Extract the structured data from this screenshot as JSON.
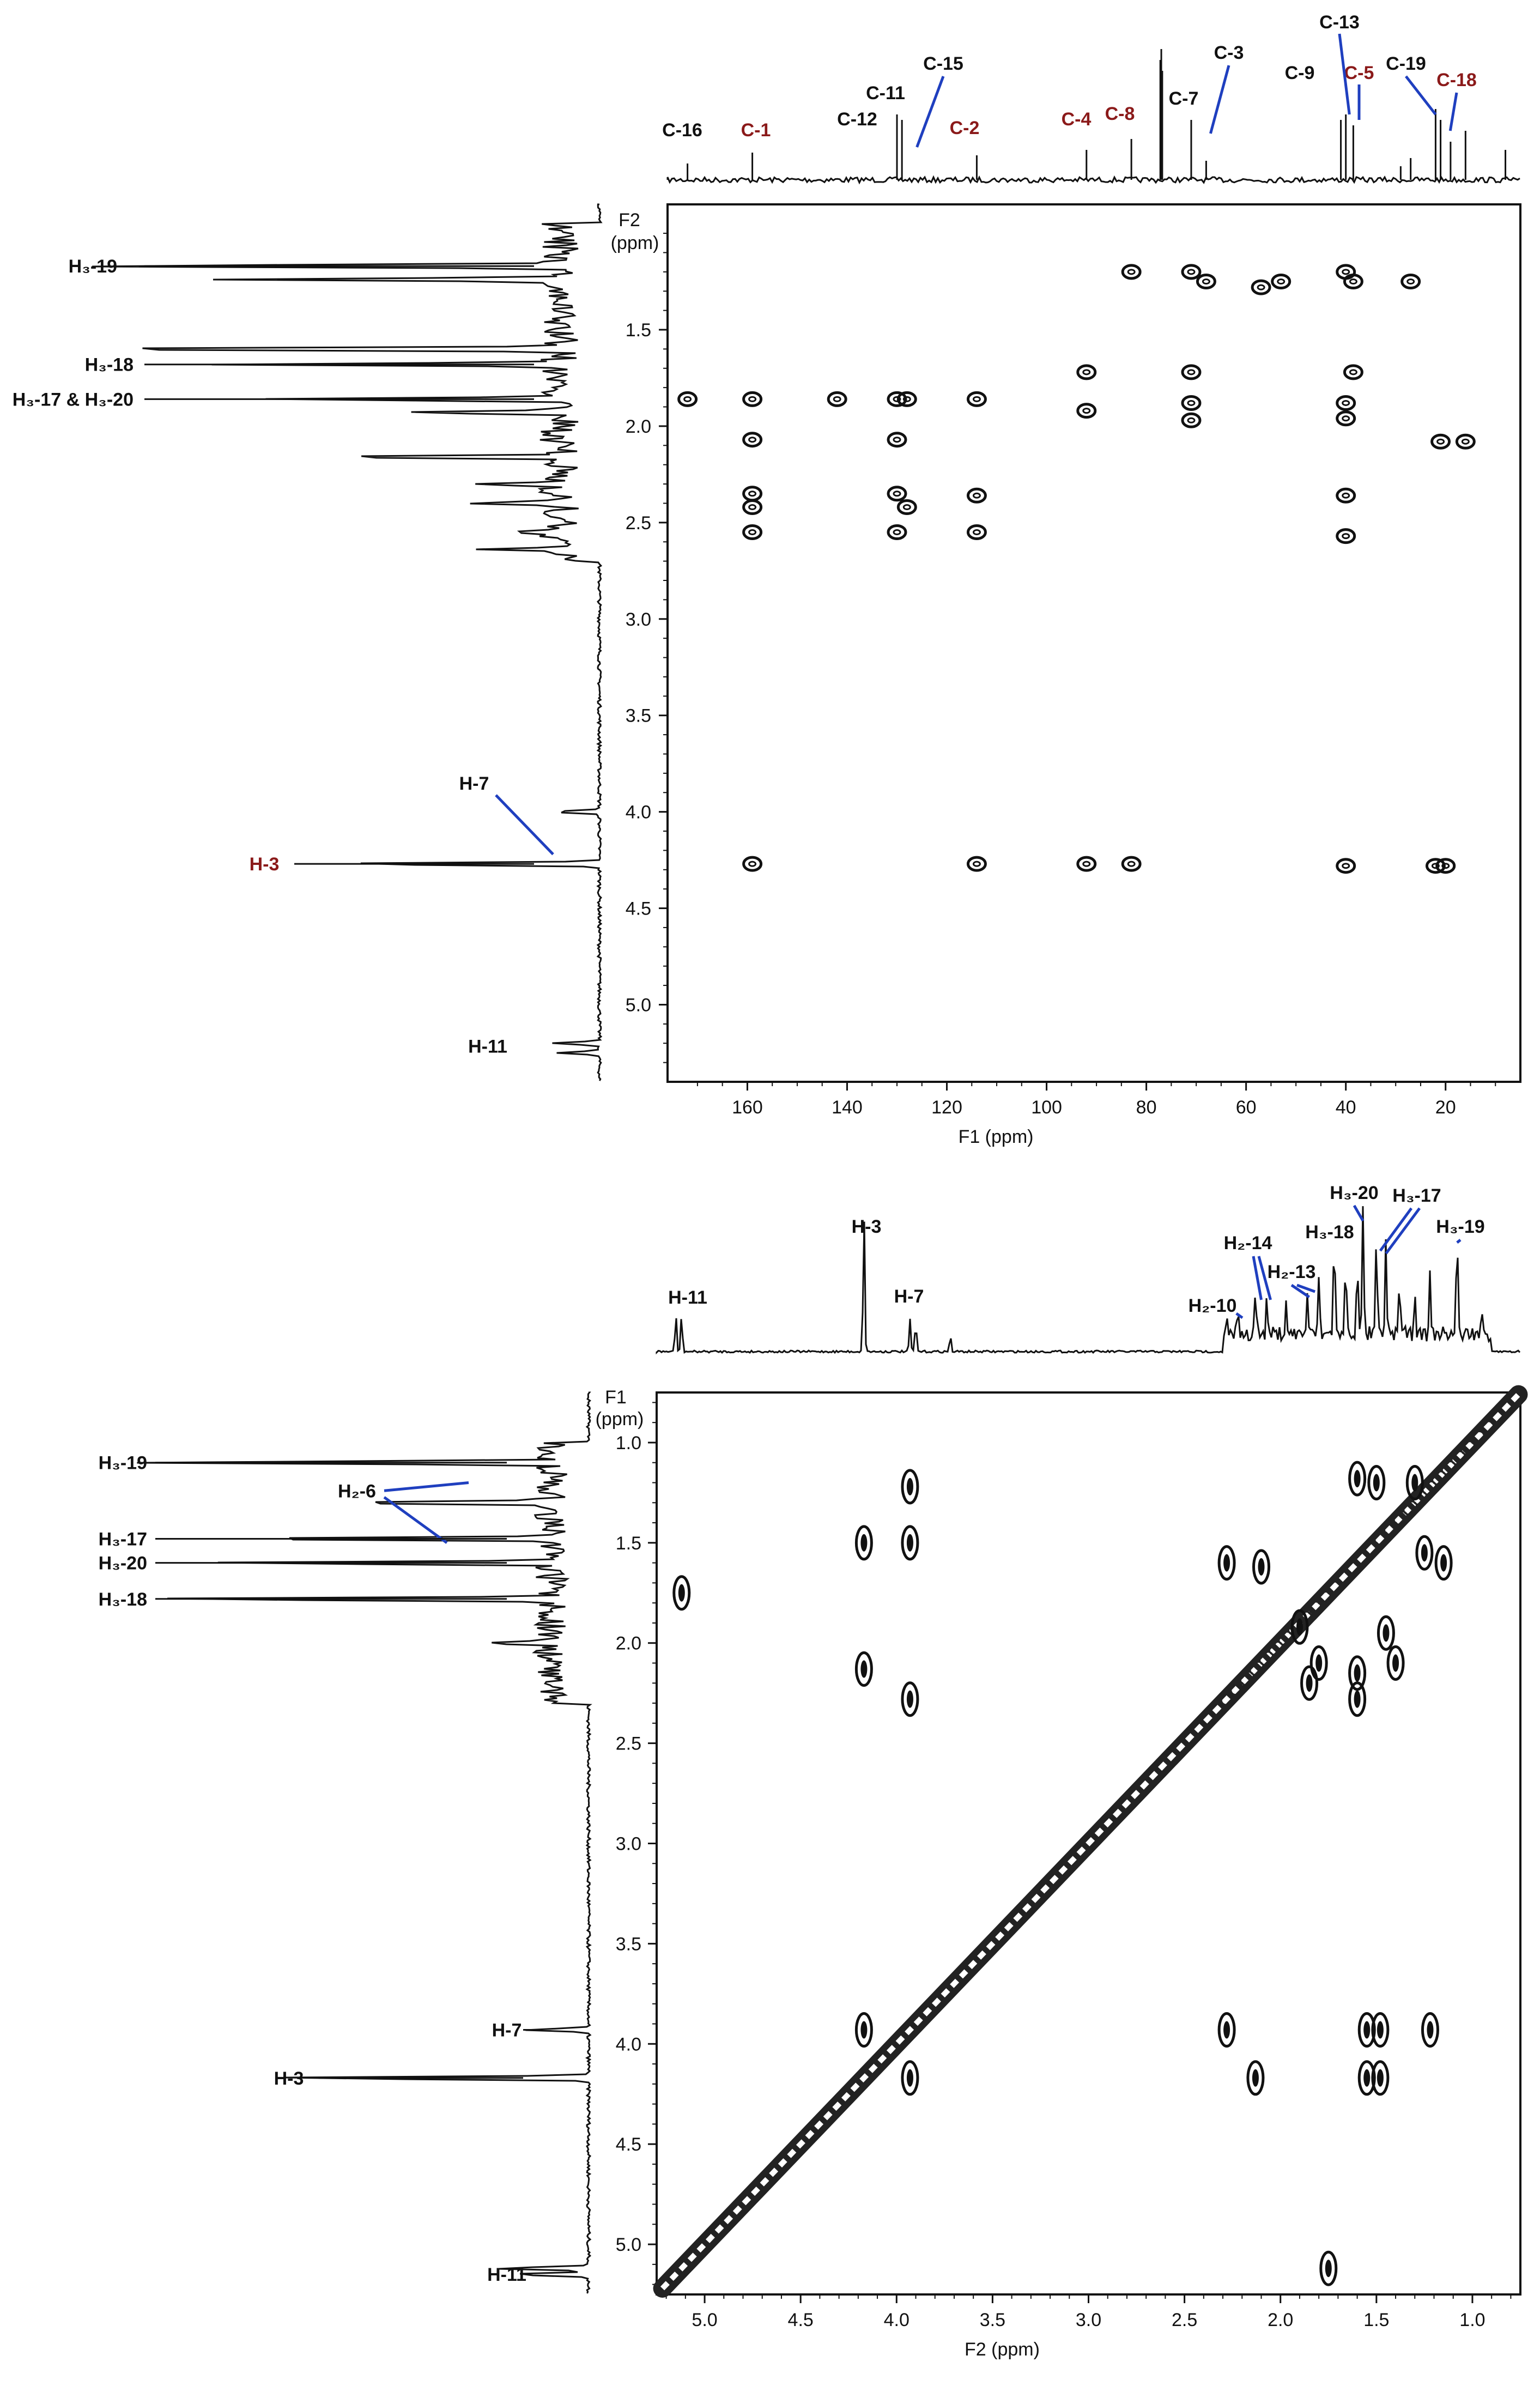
{
  "colors": {
    "label_black": "#111111",
    "label_red": "#8b1a1a",
    "leader_blue": "#1f3fbf",
    "trace": "#111111"
  },
  "chart_data": [
    {
      "type": "scatter",
      "experiment": "HMBC",
      "f1_label": "F1 (ppm)",
      "f2_label": "F2 (ppm)",
      "f1_axis": "horizontal (13C)",
      "f1_lim": [
        176,
        5
      ],
      "f1_ticks": [
        160,
        140,
        120,
        100,
        80,
        60,
        40,
        20
      ],
      "f2_axis": "vertical (1H)",
      "f2_lim": [
        0.85,
        5.4
      ],
      "f2_ticks": [
        "1.5",
        "2.0",
        "2.5",
        "3.0",
        "3.5",
        "4.0",
        "4.5",
        "5.0"
      ],
      "top_projection_labels": [
        {
          "text": "C-16",
          "ppm": 172,
          "color": "black"
        },
        {
          "text": "C-1",
          "ppm": 159,
          "color": "red"
        },
        {
          "text": "C-12",
          "ppm": 130,
          "color": "black"
        },
        {
          "text": "C-11",
          "ppm": 129,
          "color": "black"
        },
        {
          "text": "C-15",
          "ppm": 126,
          "color": "black"
        },
        {
          "text": "C-2",
          "ppm": 114,
          "color": "red"
        },
        {
          "text": "C-4",
          "ppm": 92,
          "color": "red"
        },
        {
          "text": "C-8",
          "ppm": 83,
          "color": "red"
        },
        {
          "text": "C-7",
          "ppm": 71,
          "color": "black"
        },
        {
          "text": "C-3",
          "ppm": 68,
          "color": "black"
        },
        {
          "text": "C-9",
          "ppm": 41,
          "color": "black"
        },
        {
          "text": "C-13",
          "ppm": 39.5,
          "color": "black"
        },
        {
          "text": "C-5",
          "ppm": 38,
          "color": "red"
        },
        {
          "text": "C-19",
          "ppm": 22,
          "color": "black"
        },
        {
          "text": "C-18",
          "ppm": 20,
          "color": "red"
        }
      ],
      "left_projection_labels": [
        {
          "text": "H₃-19",
          "ppm": 1.17,
          "color": "black"
        },
        {
          "text": "H₃-18",
          "ppm": 1.68,
          "color": "black"
        },
        {
          "text": "H₃-17 & H₃-20",
          "ppm": 1.86,
          "color": "black"
        },
        {
          "text": "H-7",
          "ppm": 4.0,
          "color": "black"
        },
        {
          "text": "H-3",
          "ppm": 4.27,
          "color": "red"
        },
        {
          "text": "H-11",
          "ppm": 5.22,
          "color": "black"
        }
      ],
      "cross_peaks": [
        {
          "f1": 83,
          "f2": 1.2
        },
        {
          "f1": 71,
          "f2": 1.2
        },
        {
          "f1": 68,
          "f2": 1.25
        },
        {
          "f1": 57,
          "f2": 1.28
        },
        {
          "f1": 53,
          "f2": 1.25
        },
        {
          "f1": 40,
          "f2": 1.2
        },
        {
          "f1": 38.5,
          "f2": 1.25
        },
        {
          "f1": 27,
          "f2": 1.25
        },
        {
          "f1": 92,
          "f2": 1.72
        },
        {
          "f1": 71,
          "f2": 1.72
        },
        {
          "f1": 38.5,
          "f2": 1.72
        },
        {
          "f1": 172,
          "f2": 1.86
        },
        {
          "f1": 159,
          "f2": 1.86
        },
        {
          "f1": 142,
          "f2": 1.86
        },
        {
          "f1": 130,
          "f2": 1.86
        },
        {
          "f1": 128,
          "f2": 1.86
        },
        {
          "f1": 114,
          "f2": 1.86
        },
        {
          "f1": 92,
          "f2": 1.92
        },
        {
          "f1": 71,
          "f2": 1.88
        },
        {
          "f1": 71,
          "f2": 1.97
        },
        {
          "f1": 40,
          "f2": 1.88
        },
        {
          "f1": 40,
          "f2": 1.96
        },
        {
          "f1": 159,
          "f2": 2.07
        },
        {
          "f1": 130,
          "f2": 2.07
        },
        {
          "f1": 21,
          "f2": 2.08
        },
        {
          "f1": 16,
          "f2": 2.08
        },
        {
          "f1": 159,
          "f2": 2.35
        },
        {
          "f1": 159,
          "f2": 2.42
        },
        {
          "f1": 130,
          "f2": 2.35
        },
        {
          "f1": 128,
          "f2": 2.42
        },
        {
          "f1": 114,
          "f2": 2.36
        },
        {
          "f1": 40,
          "f2": 2.36
        },
        {
          "f1": 159,
          "f2": 2.55
        },
        {
          "f1": 130,
          "f2": 2.55
        },
        {
          "f1": 114,
          "f2": 2.55
        },
        {
          "f1": 40,
          "f2": 2.57
        },
        {
          "f1": 159,
          "f2": 4.27
        },
        {
          "f1": 114,
          "f2": 4.27
        },
        {
          "f1": 92,
          "f2": 4.27
        },
        {
          "f1": 83,
          "f2": 4.27
        },
        {
          "f1": 40,
          "f2": 4.28
        },
        {
          "f1": 22,
          "f2": 4.28
        },
        {
          "f1": 20,
          "f2": 4.28
        }
      ]
    },
    {
      "type": "scatter",
      "experiment": "COSY",
      "f1_label": "F1 (ppm)",
      "f2_label": "F2 (ppm)",
      "f2_axis": "horizontal (1H)",
      "f2_lim": [
        5.25,
        0.75
      ],
      "f2_ticks": [
        "5.0",
        "4.5",
        "4.0",
        "3.5",
        "3.0",
        "2.5",
        "2.0",
        "1.5",
        "1.0"
      ],
      "f1_axis": "vertical (1H)",
      "f1_lim": [
        0.75,
        5.25
      ],
      "f1_ticks": [
        "1.0",
        "1.5",
        "2.0",
        "2.5",
        "3.0",
        "3.5",
        "4.0",
        "4.5",
        "5.0"
      ],
      "top_projection_labels": [
        {
          "text": "H-11",
          "ppm": 5.15,
          "color": "black"
        },
        {
          "text": "H-3",
          "ppm": 4.17,
          "color": "black"
        },
        {
          "text": "H-7",
          "ppm": 3.93,
          "color": "black"
        },
        {
          "text": "H₂-10",
          "ppm": 2.23,
          "color": "black"
        },
        {
          "text": "H₂-14",
          "ppm": 2.1,
          "color": "black"
        },
        {
          "text": "H₂-13",
          "ppm": 1.85,
          "color": "black"
        },
        {
          "text": "H₃-18",
          "ppm": 1.72,
          "color": "black"
        },
        {
          "text": "H₃-20",
          "ppm": 1.57,
          "color": "black"
        },
        {
          "text": "H₃-17",
          "ppm": 1.48,
          "color": "black"
        },
        {
          "text": "H₃-19",
          "ppm": 1.08,
          "color": "black"
        }
      ],
      "left_projection_labels": [
        {
          "text": "H₃-19",
          "ppm": 1.1,
          "color": "black"
        },
        {
          "text": "H₂-6",
          "ppm": 1.3,
          "color": "black"
        },
        {
          "text": "H₃-17",
          "ppm": 1.48,
          "color": "black"
        },
        {
          "text": "H₃-20",
          "ppm": 1.6,
          "color": "black"
        },
        {
          "text": "H₃-18",
          "ppm": 1.78,
          "color": "black"
        },
        {
          "text": "H-7",
          "ppm": 3.93,
          "color": "black"
        },
        {
          "text": "H-3",
          "ppm": 4.17,
          "color": "black"
        },
        {
          "text": "H-11",
          "ppm": 5.15,
          "color": "black"
        }
      ],
      "cross_peaks": [
        {
          "f2": 5.12,
          "f1": 1.75
        },
        {
          "f2": 4.17,
          "f1": 1.5
        },
        {
          "f2": 4.17,
          "f1": 2.13
        },
        {
          "f2": 3.93,
          "f1": 1.22
        },
        {
          "f2": 3.93,
          "f1": 1.5
        },
        {
          "f2": 3.93,
          "f1": 2.28
        },
        {
          "f2": 2.28,
          "f1": 3.93
        },
        {
          "f2": 2.13,
          "f1": 4.17
        },
        {
          "f2": 1.55,
          "f1": 3.93
        },
        {
          "f2": 1.48,
          "f1": 3.93
        },
        {
          "f2": 1.55,
          "f1": 4.17
        },
        {
          "f2": 1.48,
          "f1": 4.17
        },
        {
          "f2": 1.22,
          "f1": 3.93
        },
        {
          "f2": 1.75,
          "f1": 5.12
        },
        {
          "f2": 4.17,
          "f1": 3.93
        },
        {
          "f2": 3.93,
          "f1": 4.17
        },
        {
          "f2": 2.28,
          "f1": 1.6
        },
        {
          "f2": 2.1,
          "f1": 1.62
        },
        {
          "f2": 1.9,
          "f1": 1.92
        },
        {
          "f2": 1.85,
          "f1": 2.2
        },
        {
          "f2": 1.8,
          "f1": 2.1
        },
        {
          "f2": 1.6,
          "f1": 2.28
        },
        {
          "f2": 1.6,
          "f1": 2.15
        },
        {
          "f2": 1.45,
          "f1": 1.95
        },
        {
          "f2": 1.4,
          "f1": 2.1
        },
        {
          "f2": 1.25,
          "f1": 1.55
        },
        {
          "f2": 1.15,
          "f1": 1.6
        },
        {
          "f2": 1.5,
          "f1": 1.2
        },
        {
          "f2": 1.3,
          "f1": 1.2
        },
        {
          "f2": 1.6,
          "f1": 1.18
        }
      ]
    }
  ]
}
